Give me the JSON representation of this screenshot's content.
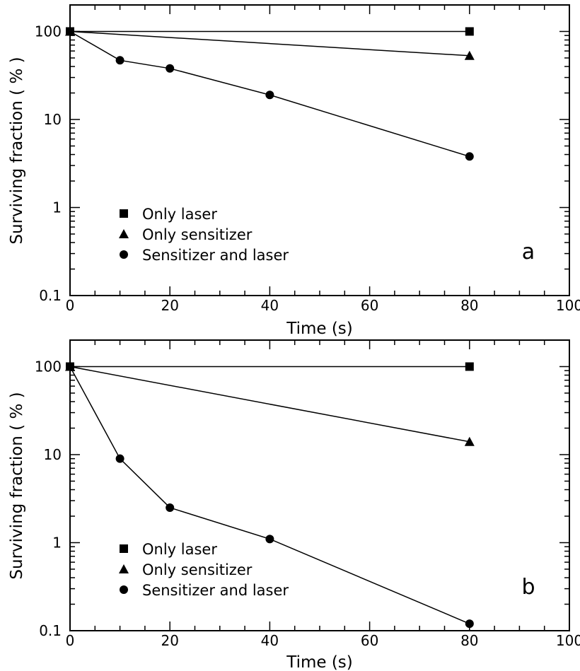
{
  "chart_data": [
    {
      "type": "line",
      "panel_label": "a",
      "xlabel": "Time (s)",
      "ylabel": "Surviving fraction ( % )",
      "xlim": [
        0,
        100
      ],
      "ylim": [
        0.1,
        200
      ],
      "yscale": "log",
      "xticks": [
        "0",
        "20",
        "40",
        "60",
        "80",
        "100"
      ],
      "yticks": [
        "0.1",
        "1",
        "10",
        "100"
      ],
      "grid": false,
      "legend_position": "bottom-left",
      "series": [
        {
          "name": "Only laser",
          "marker": "square",
          "x": [
            0,
            80
          ],
          "y": [
            100,
            100
          ]
        },
        {
          "name": "Only sensitizer",
          "marker": "triangle",
          "x": [
            0,
            80
          ],
          "y": [
            100,
            53
          ]
        },
        {
          "name": "Sensitizer and laser",
          "marker": "circle",
          "x": [
            0,
            10,
            20,
            40,
            80
          ],
          "y": [
            100,
            47,
            38,
            19,
            3.8
          ]
        }
      ]
    },
    {
      "type": "line",
      "panel_label": "b",
      "xlabel": "Time (s)",
      "ylabel": "Surviving fraction ( % )",
      "xlim": [
        0,
        100
      ],
      "ylim": [
        0.1,
        200
      ],
      "yscale": "log",
      "xticks": [
        "0",
        "20",
        "40",
        "60",
        "80",
        "100"
      ],
      "yticks": [
        "0.1",
        "1",
        "10",
        "100"
      ],
      "grid": false,
      "legend_position": "bottom-left",
      "series": [
        {
          "name": "Only laser",
          "marker": "square",
          "x": [
            0,
            80
          ],
          "y": [
            100,
            100
          ]
        },
        {
          "name": "Only sensitizer",
          "marker": "triangle",
          "x": [
            0,
            80
          ],
          "y": [
            100,
            14
          ]
        },
        {
          "name": "Sensitizer and laser",
          "marker": "circle",
          "x": [
            0,
            10,
            20,
            40,
            80
          ],
          "y": [
            100,
            9,
            2.5,
            1.1,
            0.12
          ]
        }
      ]
    }
  ]
}
